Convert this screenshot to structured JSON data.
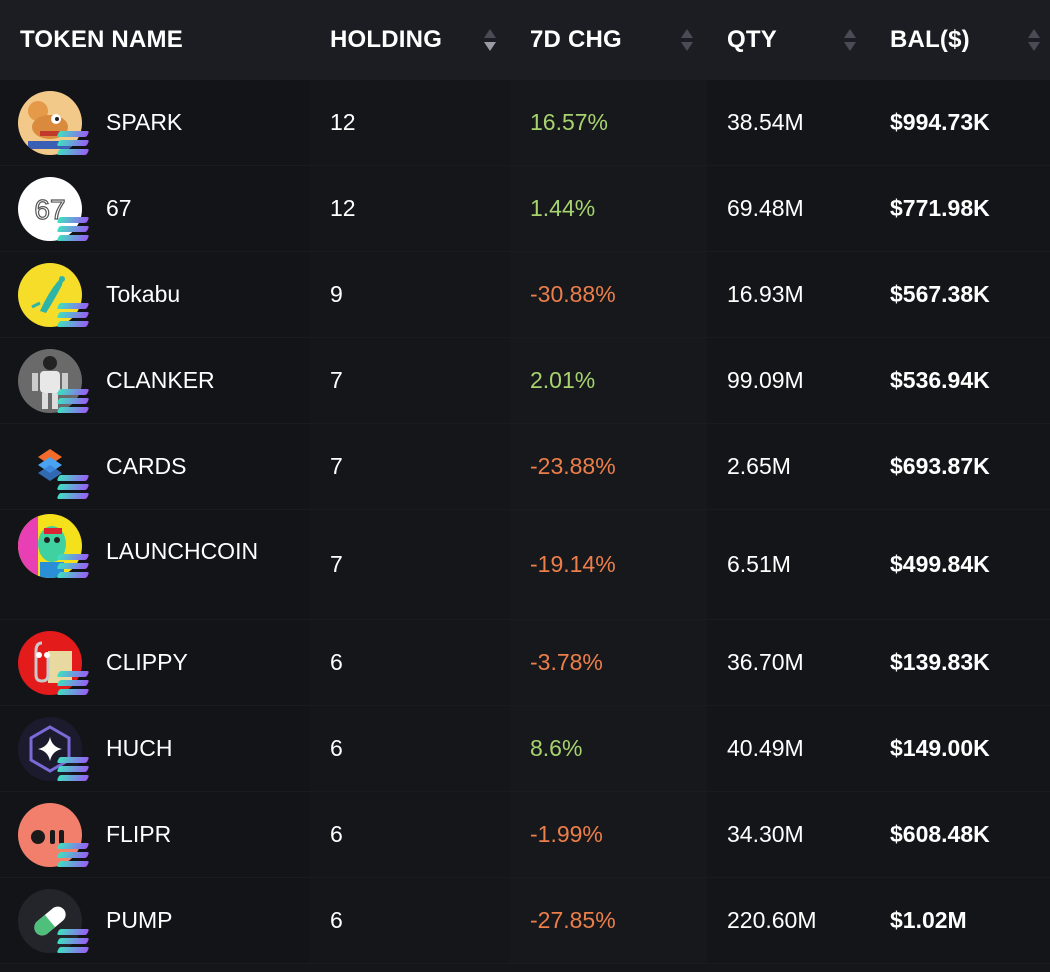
{
  "header": {
    "token_name": "TOKEN NAME",
    "holding": "HOLDING",
    "chg": "7D CHG",
    "qty": "QTY",
    "bal": "BAL($)"
  },
  "rows": [
    {
      "name": "SPARK",
      "holding": "12",
      "chg": "16.57%",
      "chg_dir": "up",
      "qty": "38.54M",
      "bal": "$994.73K",
      "icon": "spark-token-icon"
    },
    {
      "name": "67",
      "holding": "12",
      "chg": "1.44%",
      "chg_dir": "up",
      "qty": "69.48M",
      "bal": "$771.98K",
      "icon": "67-token-icon"
    },
    {
      "name": "Tokabu",
      "holding": "9",
      "chg": "-30.88%",
      "chg_dir": "down",
      "qty": "16.93M",
      "bal": "$567.38K",
      "icon": "tokabu-token-icon"
    },
    {
      "name": "CLANKER",
      "holding": "7",
      "chg": "2.01%",
      "chg_dir": "up",
      "qty": "99.09M",
      "bal": "$536.94K",
      "icon": "clanker-token-icon"
    },
    {
      "name": "CARDS",
      "holding": "7",
      "chg": "-23.88%",
      "chg_dir": "down",
      "qty": "2.65M",
      "bal": "$693.87K",
      "icon": "cards-token-icon"
    },
    {
      "name": "LAUNCHCOIN",
      "holding": "7",
      "chg": "-19.14%",
      "chg_dir": "down",
      "qty": "6.51M",
      "bal": "$499.84K",
      "icon": "launchcoin-token-icon"
    },
    {
      "name": "CLIPPY",
      "holding": "6",
      "chg": "-3.78%",
      "chg_dir": "down",
      "qty": "36.70M",
      "bal": "$139.83K",
      "icon": "clippy-token-icon"
    },
    {
      "name": "HUCH",
      "holding": "6",
      "chg": "8.6%",
      "chg_dir": "up",
      "qty": "40.49M",
      "bal": "$149.00K",
      "icon": "huch-token-icon"
    },
    {
      "name": "FLIPR",
      "holding": "6",
      "chg": "-1.99%",
      "chg_dir": "down",
      "qty": "34.30M",
      "bal": "$608.48K",
      "icon": "flipr-token-icon"
    },
    {
      "name": "PUMP",
      "holding": "6",
      "chg": "-27.85%",
      "chg_dir": "down",
      "qty": "220.60M",
      "bal": "$1.02M",
      "icon": "pump-token-icon"
    }
  ],
  "colors": {
    "positive": "#a6d36e",
    "negative": "#ec7e4a",
    "background": "#15161a",
    "header_bg": "#1c1d22"
  },
  "avatar_text": {
    "67": "67"
  }
}
